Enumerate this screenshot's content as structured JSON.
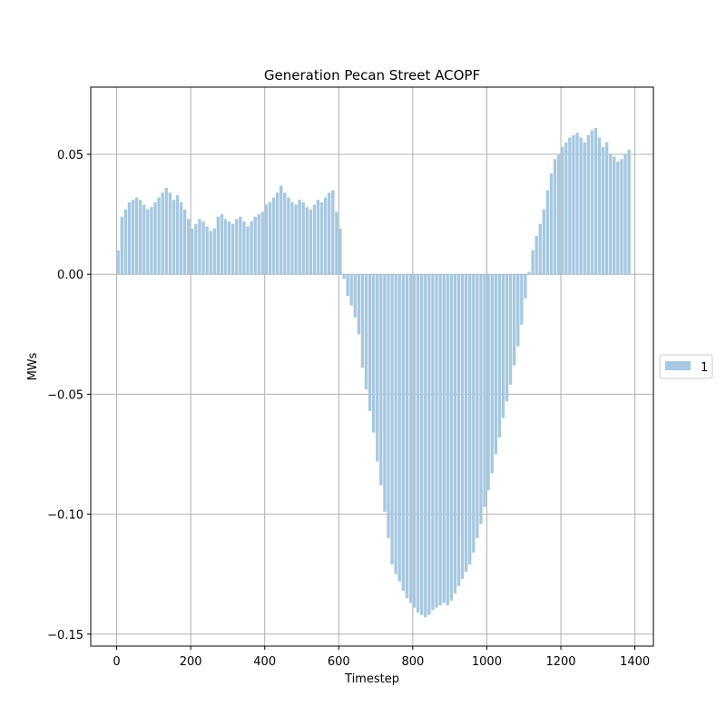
{
  "chart_data": {
    "type": "bar",
    "title": "Generation Pecan Street ACOPF",
    "xlabel": "Timestep",
    "ylabel": "MWs",
    "xlim": [
      -70,
      1450
    ],
    "ylim": [
      -0.155,
      0.078
    ],
    "xticks": [
      0,
      200,
      400,
      600,
      800,
      1000,
      1200,
      1400
    ],
    "xtick_labels": [
      "0",
      "200",
      "400",
      "600",
      "800",
      "1000",
      "1200",
      "1400"
    ],
    "yticks": [
      -0.15,
      -0.1,
      -0.05,
      0.0,
      0.05
    ],
    "ytick_labels": [
      "−0.15",
      "−0.10",
      "−0.05",
      "0.00",
      "0.05"
    ],
    "grid": true,
    "legend": {
      "position": "right-center",
      "entries": [
        "1"
      ]
    },
    "series": [
      {
        "name": "1",
        "color": "#a6c8e0",
        "step": 10,
        "x": [
          0,
          10,
          20,
          30,
          40,
          50,
          60,
          70,
          80,
          90,
          100,
          110,
          120,
          130,
          140,
          150,
          160,
          170,
          180,
          190,
          200,
          210,
          220,
          230,
          240,
          250,
          260,
          270,
          280,
          290,
          300,
          310,
          320,
          330,
          340,
          350,
          360,
          370,
          380,
          390,
          400,
          410,
          420,
          430,
          440,
          450,
          460,
          470,
          480,
          490,
          500,
          510,
          520,
          530,
          540,
          550,
          560,
          570,
          580,
          590,
          600,
          610,
          620,
          630,
          640,
          650,
          660,
          670,
          680,
          690,
          700,
          710,
          720,
          730,
          740,
          750,
          760,
          770,
          780,
          790,
          800,
          810,
          820,
          830,
          840,
          850,
          860,
          870,
          880,
          890,
          900,
          910,
          920,
          930,
          940,
          950,
          960,
          970,
          980,
          990,
          1000,
          1010,
          1020,
          1030,
          1040,
          1050,
          1060,
          1070,
          1080,
          1090,
          1100,
          1110,
          1120,
          1130,
          1140,
          1150,
          1160,
          1170,
          1180,
          1190,
          1200,
          1210,
          1220,
          1230,
          1240,
          1250,
          1260,
          1270,
          1280,
          1290,
          1300,
          1310,
          1320,
          1330,
          1340,
          1350,
          1360,
          1370,
          1380
        ],
        "values": [
          0.01,
          0.024,
          0.027,
          0.03,
          0.031,
          0.032,
          0.031,
          0.029,
          0.027,
          0.028,
          0.03,
          0.032,
          0.034,
          0.036,
          0.034,
          0.031,
          0.033,
          0.03,
          0.027,
          0.023,
          0.019,
          0.021,
          0.023,
          0.022,
          0.02,
          0.018,
          0.019,
          0.024,
          0.025,
          0.023,
          0.022,
          0.021,
          0.023,
          0.024,
          0.022,
          0.02,
          0.022,
          0.024,
          0.025,
          0.026,
          0.029,
          0.03,
          0.032,
          0.034,
          0.037,
          0.034,
          0.032,
          0.03,
          0.029,
          0.031,
          0.03,
          0.028,
          0.027,
          0.029,
          0.031,
          0.03,
          0.032,
          0.034,
          0.035,
          0.026,
          0.019,
          -0.002,
          -0.009,
          -0.013,
          -0.018,
          -0.025,
          -0.039,
          -0.048,
          -0.057,
          -0.066,
          -0.078,
          -0.088,
          -0.099,
          -0.11,
          -0.121,
          -0.125,
          -0.128,
          -0.132,
          -0.135,
          -0.137,
          -0.139,
          -0.141,
          -0.142,
          -0.143,
          -0.142,
          -0.14,
          -0.139,
          -0.138,
          -0.137,
          -0.138,
          -0.136,
          -0.133,
          -0.13,
          -0.127,
          -0.124,
          -0.121,
          -0.116,
          -0.11,
          -0.104,
          -0.097,
          -0.09,
          -0.083,
          -0.075,
          -0.068,
          -0.06,
          -0.053,
          -0.046,
          -0.038,
          -0.03,
          -0.021,
          -0.01,
          0.001,
          0.01,
          0.016,
          0.021,
          0.027,
          0.035,
          0.042,
          0.048,
          0.05,
          0.053,
          0.055,
          0.057,
          0.058,
          0.059,
          0.057,
          0.055,
          0.058,
          0.06,
          0.061,
          0.057,
          0.053,
          0.055,
          0.05,
          0.049,
          0.047,
          0.048,
          0.05,
          0.052
        ]
      }
    ]
  }
}
